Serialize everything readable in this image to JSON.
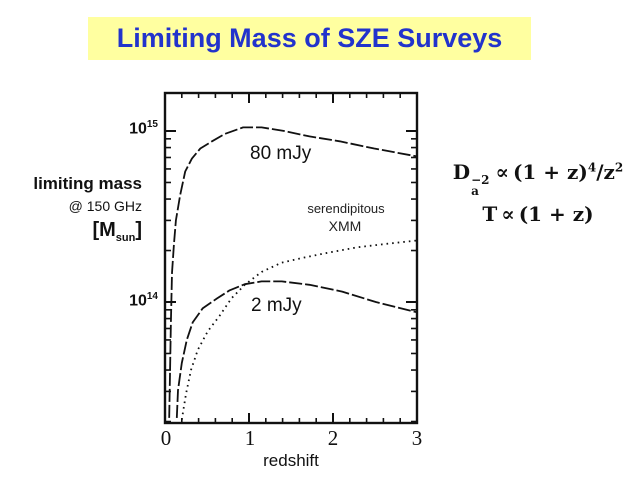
{
  "title": {
    "text": "Limiting Mass of SZE Surveys",
    "band_color": "#ffffa0",
    "text_color": "#2233cc"
  },
  "left_panel": {
    "line1": "limiting mass",
    "line2": "@ 150 GHz",
    "line3_pre": "[M",
    "line3_sub": "sun",
    "line3_post": "]"
  },
  "y_axis": {
    "upper": {
      "base": "10",
      "exp": "15"
    },
    "lower": {
      "base": "10",
      "exp": "14"
    }
  },
  "x_axis": {
    "tick_labels": [
      "0",
      "1",
      "2",
      "3"
    ],
    "title": "redshift"
  },
  "curve_labels": {
    "upper": "80 mJy",
    "lower": "2 mJy",
    "xmm_line1": "serendipitous",
    "xmm_line2": "XMM"
  },
  "equations": {
    "eq1": {
      "lhs_base": "D",
      "lhs_sup": "−2",
      "lhs_sub": "a",
      "propto": "∝",
      "rhs_group": "(1 + z)",
      "rhs_group_exp": "4",
      "rhs_div": "/z",
      "rhs_div_exp": "2"
    },
    "eq2": {
      "lhs": "T",
      "propto": "∝",
      "rhs": "(1 + z)"
    }
  },
  "chart_data": {
    "type": "line",
    "xlabel": "redshift",
    "ylabel": "limiting mass @ 150 GHz [M_sun]",
    "xlim": [
      0,
      3
    ],
    "ylim": [
      20000000000000.0,
      1650000000000000.0
    ],
    "y_scale": "log",
    "y_major_ticks": [
      100000000000000.0,
      1000000000000000.0
    ],
    "grid": false,
    "legend_position": "inline-annotations",
    "curve_color": "#111111",
    "series": [
      {
        "name": "80 mJy",
        "style": "dash",
        "points": [
          [
            0.05,
            21000000000000.0
          ],
          [
            0.06,
            38000000000000.0
          ],
          [
            0.07,
            76000000000000.0
          ],
          [
            0.083,
            148000000000000.0
          ],
          [
            0.107,
            220000000000000.0
          ],
          [
            0.13,
            300000000000000.0
          ],
          [
            0.18,
            420000000000000.0
          ],
          [
            0.24,
            580000000000000.0
          ],
          [
            0.32,
            690000000000000.0
          ],
          [
            0.42,
            790000000000000.0
          ],
          [
            0.56,
            870000000000000.0
          ],
          [
            0.71,
            960000000000000.0
          ],
          [
            0.93,
            1050000000000000.0
          ],
          [
            1.15,
            1050000000000000.0
          ],
          [
            1.42,
            1000000000000000.0
          ],
          [
            1.72,
            930000000000000.0
          ],
          [
            2.08,
            870000000000000.0
          ],
          [
            2.49,
            790000000000000.0
          ],
          [
            3.0,
            710000000000000.0
          ]
        ]
      },
      {
        "name": "2 mJy",
        "style": "dash",
        "points": [
          [
            0.14,
            21000000000000.0
          ],
          [
            0.155,
            30500000000000.0
          ],
          [
            0.2,
            44000000000000.0
          ],
          [
            0.26,
            60000000000000.0
          ],
          [
            0.33,
            76000000000000.0
          ],
          [
            0.45,
            92000000000000.0
          ],
          [
            0.62,
            105000000000000.0
          ],
          [
            0.77,
            117000000000000.0
          ],
          [
            0.95,
            127000000000000.0
          ],
          [
            1.15,
            132000000000000.0
          ],
          [
            1.39,
            132000000000000.0
          ],
          [
            1.72,
            126000000000000.0
          ],
          [
            2.11,
            115000000000000.0
          ],
          [
            2.51,
            100000000000000.0
          ],
          [
            3.0,
            87000000000000.0
          ]
        ]
      },
      {
        "name": "serendipitous XMM",
        "style": "dotted",
        "points": [
          [
            0.2,
            20500000000000.0
          ],
          [
            0.25,
            29000000000000.0
          ],
          [
            0.31,
            40000000000000.0
          ],
          [
            0.39,
            52500000000000.0
          ],
          [
            0.51,
            67500000000000.0
          ],
          [
            0.65,
            83000000000000.0
          ],
          [
            0.79,
            105000000000000.0
          ],
          [
            0.95,
            126000000000000.0
          ],
          [
            1.15,
            150000000000000.0
          ],
          [
            1.39,
            170000000000000.0
          ],
          [
            1.66,
            182000000000000.0
          ],
          [
            1.96,
            195000000000000.0
          ],
          [
            2.29,
            209000000000000.0
          ],
          [
            2.64,
            219000000000000.0
          ],
          [
            3.0,
            229000000000000.0
          ]
        ]
      }
    ]
  }
}
